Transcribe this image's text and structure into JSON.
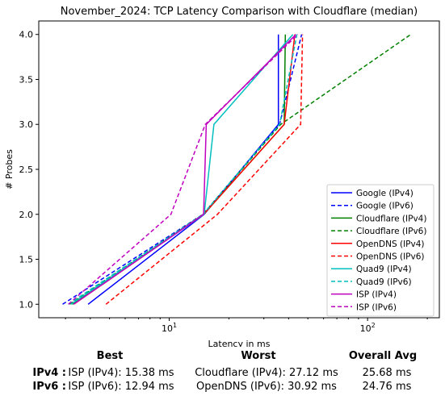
{
  "chart_data": {
    "type": "line",
    "title": "November_2024: TCP Latency Comparison with Cloudflare (median)",
    "xlabel": "Latency in ms",
    "ylabel": "# Probes",
    "xscale": "log",
    "xlim": [
      2.2,
      230
    ],
    "ylim": [
      0.85,
      4.15
    ],
    "xticks": [
      {
        "value": 10,
        "base": "10",
        "exp": "1"
      },
      {
        "value": 100,
        "base": "10",
        "exp": "2"
      }
    ],
    "yticks": [
      "1.0",
      "1.5",
      "2.0",
      "2.5",
      "3.0",
      "3.5",
      "4.0"
    ],
    "grid": false,
    "legend_position": "lower-right",
    "series": [
      {
        "name": "Google (IPv4)",
        "color": "#0000ff",
        "dash": "solid",
        "x": [
          3.9,
          15.0,
          35.5,
          35.5
        ],
        "y": [
          1,
          2,
          3,
          4
        ]
      },
      {
        "name": "Google (IPv6)",
        "color": "#0000ff",
        "dash": "dashed",
        "x": [
          2.9,
          14.8,
          36.0,
          46.5
        ],
        "y": [
          1,
          2,
          3,
          4
        ]
      },
      {
        "name": "Cloudflare (IPv4)",
        "color": "#008000",
        "dash": "solid",
        "x": [
          3.25,
          14.9,
          38.0,
          38.5
        ],
        "y": [
          1,
          2,
          3,
          4
        ]
      },
      {
        "name": "Cloudflare (IPv6)",
        "color": "#008000",
        "dash": "dashed",
        "x": [
          3.15,
          14.8,
          36.5,
          165.0
        ],
        "y": [
          1,
          2,
          3,
          4
        ]
      },
      {
        "name": "OpenDNS (IPv4)",
        "color": "#ff0000",
        "dash": "solid",
        "x": [
          3.3,
          14.9,
          38.0,
          43.0
        ],
        "y": [
          1,
          2,
          3,
          4
        ]
      },
      {
        "name": "OpenDNS (IPv6)",
        "color": "#ff0000",
        "dash": "dashed",
        "x": [
          4.8,
          17.5,
          46.0,
          47.0
        ],
        "y": [
          1,
          2,
          3,
          4
        ]
      },
      {
        "name": "Quad9 (IPv4)",
        "color": "#00bfbf",
        "dash": "solid",
        "x": [
          3.2,
          15.0,
          16.8,
          42.0
        ],
        "y": [
          1,
          2,
          3,
          4
        ]
      },
      {
        "name": "Quad9 (IPv6)",
        "color": "#00bfbf",
        "dash": "dashed",
        "x": [
          3.1,
          14.8,
          36.0,
          44.0
        ],
        "y": [
          1,
          2,
          3,
          4
        ]
      },
      {
        "name": "ISP (IPv4)",
        "color": "#bf00bf",
        "dash": "solid",
        "x": [
          3.3,
          14.9,
          15.38,
          43.5
        ],
        "y": [
          1,
          2,
          3,
          4
        ]
      },
      {
        "name": "ISP (IPv6)",
        "color": "#bf00bf",
        "dash": "dashed",
        "x": [
          3.1,
          10.2,
          15.2,
          44.5
        ],
        "y": [
          1,
          2,
          3,
          4
        ]
      }
    ]
  },
  "summary": {
    "headers": {
      "best": "Best",
      "worst": "Worst",
      "avg": "Overall Avg"
    },
    "rows": [
      {
        "label": "IPv4 :",
        "best": "ISP (IPv4): 15.38 ms",
        "worst": "Cloudflare (IPv4): 27.12 ms",
        "avg": "25.68 ms"
      },
      {
        "label": "IPv6 :",
        "best": "ISP (IPv6): 12.94 ms",
        "worst": "OpenDNS (IPv6): 30.92 ms",
        "avg": "24.76 ms"
      }
    ]
  }
}
